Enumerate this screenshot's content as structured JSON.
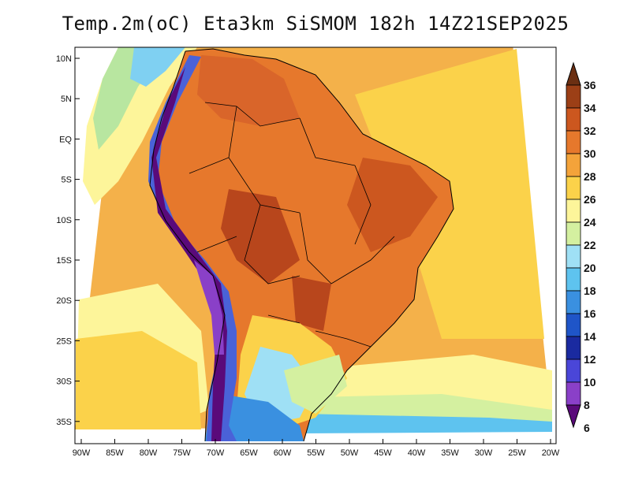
{
  "title": "Temp.2m(oC) Eta3km SiSMOM 182h 14Z21SEP2025",
  "lat_labels": [
    "10N",
    "5N",
    "EQ",
    "5S",
    "10S",
    "15S",
    "20S",
    "25S",
    "30S",
    "35S"
  ],
  "lon_labels": [
    "90W",
    "85W",
    "80W",
    "75W",
    "70W",
    "65W",
    "60W",
    "55W",
    "50W",
    "45W",
    "40W",
    "35W",
    "30W",
    "25W",
    "20W"
  ],
  "colorbar": {
    "min": 6,
    "max": 36,
    "labels": [
      "36",
      "34",
      "32",
      "30",
      "28",
      "26",
      "24",
      "22",
      "20",
      "18",
      "16",
      "14",
      "12",
      "10",
      "8",
      "6"
    ],
    "colors": [
      "#6b2f12",
      "#9c3f16",
      "#cc571f",
      "#e6782c",
      "#f4a33a",
      "#fbd24a",
      "#fdf59a",
      "#d4f0a0",
      "#9fe0f5",
      "#5ec3ef",
      "#3a90e0",
      "#1f55c8",
      "#1a2aa0",
      "#4a46d8",
      "#8a40c8",
      "#5a0a7a"
    ]
  },
  "map_colors": {
    "ocean_warm": "#f4b14a",
    "ocean_mid": "#fbd24a",
    "ocean_cool": "#fdf59a",
    "ocean_cold": "#b8e6a0",
    "land_hot": "#d9652a",
    "land_hottest": "#b8461c",
    "andes_cold": "#5e2ab8",
    "andes_mid": "#4a62d8",
    "south_cold": "#6dc8f0",
    "coast": "#000000"
  }
}
